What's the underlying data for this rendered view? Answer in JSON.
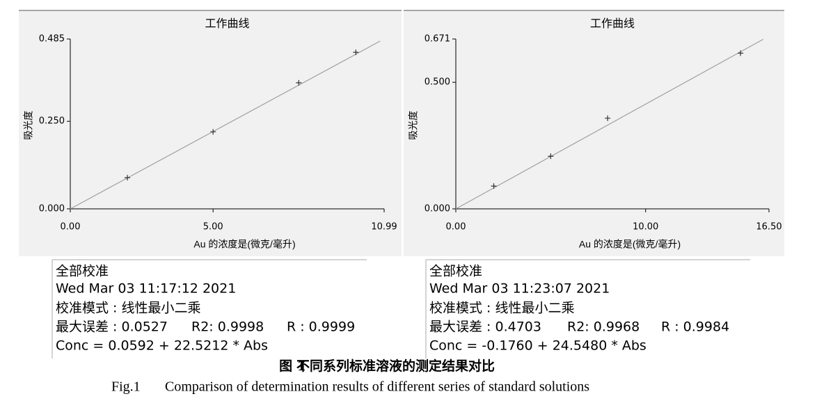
{
  "chart_data": [
    {
      "type": "scatter",
      "title": "工作曲线",
      "x_label": "Au 的浓度是(微克/毫升)",
      "y_label": "吸光度",
      "xlim": [
        0,
        10.99
      ],
      "ylim": [
        0,
        0.485
      ],
      "xticks": [
        {
          "value": 0,
          "label": "0.00"
        },
        {
          "value": 5,
          "label": "5.00"
        },
        {
          "value": 10.99,
          "label": "10.99"
        }
      ],
      "yticks": [
        {
          "value": 0,
          "label": "0.000"
        },
        {
          "value": 0.25,
          "label": "0.250"
        },
        {
          "value": 0.485,
          "label": "0.485"
        }
      ],
      "x": [
        2,
        5,
        8,
        10
      ],
      "values": [
        0.089,
        0.22,
        0.36,
        0.447
      ],
      "color": "#333333",
      "fit_line": {
        "x": [
          0,
          10.85
        ],
        "values": [
          0,
          0.479
        ],
        "color": "#a0a0a0"
      }
    },
    {
      "type": "scatter",
      "title": "工作曲线",
      "x_label": "Au 的浓度是(微克/毫升)",
      "y_label": "吸光度",
      "xlim": [
        0,
        16.5
      ],
      "ylim": [
        0,
        0.671
      ],
      "xticks": [
        {
          "value": 0,
          "label": "0.00"
        },
        {
          "value": 10,
          "label": "10.00"
        },
        {
          "value": 16.5,
          "label": "16.50"
        }
      ],
      "yticks": [
        {
          "value": 0,
          "label": "0.000"
        },
        {
          "value": 0.5,
          "label": "0.500"
        },
        {
          "value": 0.671,
          "label": "0.671"
        }
      ],
      "x": [
        2,
        5,
        8,
        15
      ],
      "values": [
        0.09,
        0.208,
        0.358,
        0.615
      ],
      "color": "#333333",
      "fit_line": {
        "x": [
          0,
          16.2
        ],
        "values": [
          0,
          0.67
        ],
        "color": "#a0a0a0"
      }
    }
  ],
  "panels": [
    {
      "title": "全部校准",
      "timestamp": "Wed Mar 03 11:17:12 2021",
      "mode": "校准模式 : 线性最小二乘",
      "max_error": "最大误差 : 0.0527",
      "r2": "R2: 0.9998",
      "r": "R : 0.9999",
      "equation": "Conc = 0.0592 + 22.5212 * Abs"
    },
    {
      "title": "全部校准",
      "timestamp": "Wed Mar 03 11:23:07 2021",
      "mode": "校准模式 : 线性最小二乘",
      "max_error": "最大误差 : 0.4703",
      "r2": "R2: 0.9968",
      "r": "R : 0.9984",
      "equation": "Conc = -0.1760 + 24.5480 * Abs"
    }
  ],
  "caption": {
    "zh_label": "图 1",
    "zh_title": "不同系列标准溶液的测定结果对比",
    "en_label": "Fig.1",
    "en_title": "Comparison of determination results of different series of standard solutions"
  }
}
